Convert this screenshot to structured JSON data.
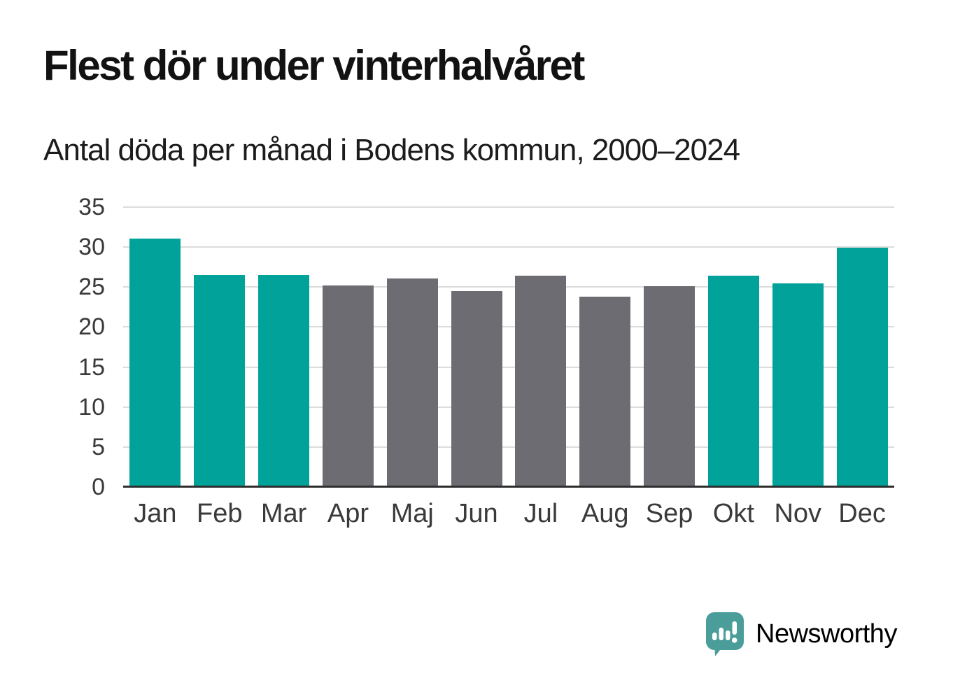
{
  "title": "Flest dör under vinterhalvåret",
  "subtitle": "Antal döda per månad i Bodens kommun, 2000–2024",
  "branding": {
    "text": "Newsworthy",
    "logo_icon": "newsworthy-speech-bubble-barchart-icon"
  },
  "colors": {
    "highlight_teal": "#00a29a",
    "neutral_gray": "#6d6c72",
    "gridline": "#dcdcdc",
    "axis": "#2f2f2f",
    "tick_text": "#3a3a3a",
    "brand_teal": "#3a958e",
    "logo_bubble": "#4a9d98"
  },
  "chart_data": {
    "type": "bar",
    "title": "Flest dör under vinterhalvåret",
    "subtitle": "Antal döda per månad i Bodens kommun, 2000–2024",
    "categories": [
      "Jan",
      "Feb",
      "Mar",
      "Apr",
      "Maj",
      "Jun",
      "Jul",
      "Aug",
      "Sep",
      "Okt",
      "Nov",
      "Dec"
    ],
    "values": [
      31.0,
      26.4,
      26.4,
      25.1,
      26.0,
      24.4,
      26.3,
      23.7,
      25.0,
      26.3,
      25.4,
      29.8
    ],
    "highlighted": [
      true,
      true,
      true,
      false,
      false,
      false,
      false,
      false,
      false,
      true,
      true,
      true
    ],
    "xlabel": "",
    "ylabel": "",
    "ylim": [
      0,
      35
    ],
    "yticks": [
      0,
      5,
      10,
      15,
      20,
      25,
      30,
      35
    ],
    "grid": "horizontal",
    "legend": "none"
  }
}
